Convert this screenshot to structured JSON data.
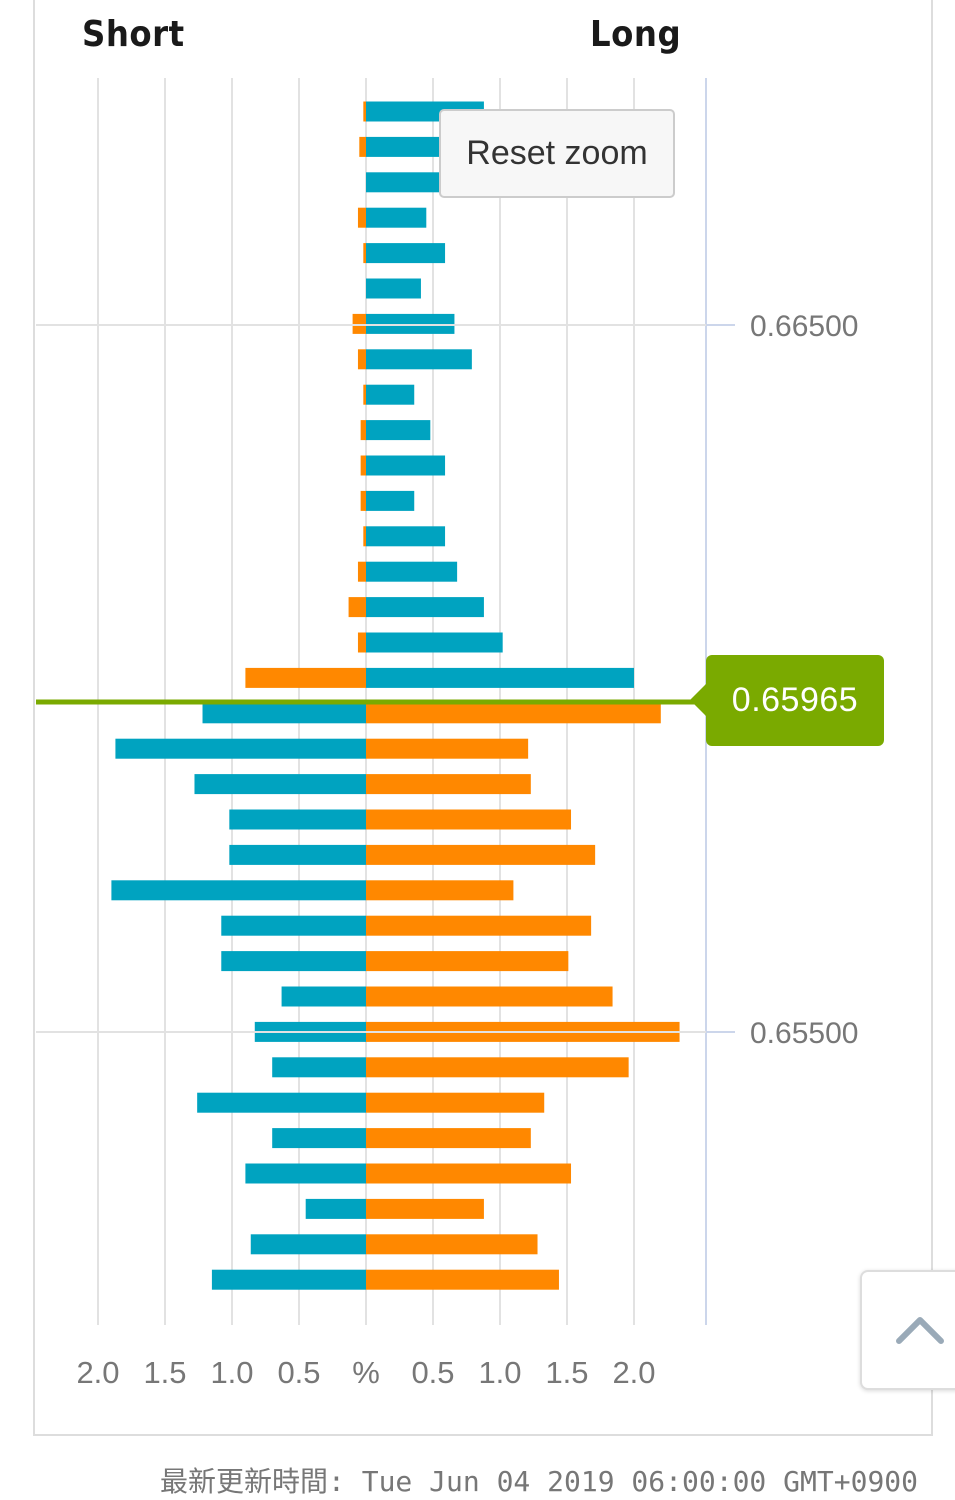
{
  "header": {
    "short_label": "Short",
    "long_label": "Long"
  },
  "reset_zoom_label": "Reset zoom",
  "current_price": "0.65965",
  "footer": {
    "updated": "最新更新時間: Tue Jun 04 2019 06:00:00 GMT+0900"
  },
  "colors": {
    "long": "#00a3c0",
    "short": "#ff8800",
    "price_line": "#7aaa00",
    "grid": "#e2e2e2",
    "axis_text": "#777777"
  },
  "chart_data": {
    "type": "bar",
    "orientation": "horizontal-diverging",
    "x_axis": {
      "unit": "%",
      "ticks_left": [
        "2.0",
        "1.5",
        "1.0",
        "0.5"
      ],
      "center_label": "%",
      "ticks_right": [
        "0.5",
        "1.0",
        "1.5",
        "2.0"
      ],
      "range": [
        -2.5,
        2.5
      ]
    },
    "y_axis": {
      "ticks": [
        "0.66500",
        "0.65500"
      ],
      "tick_values": [
        0.665,
        0.655
      ],
      "current_price": 0.65965
    },
    "series": [
      {
        "name": "Short",
        "values": [
          0.02,
          0.05,
          0.0,
          0.06,
          0.02,
          0.0,
          0.1,
          0.06,
          0.02,
          0.04,
          0.04,
          0.04,
          0.02,
          0.06,
          0.13,
          0.06,
          0.9,
          1.22,
          1.87,
          1.28,
          1.02,
          1.02,
          1.9,
          1.08,
          1.08,
          0.63,
          0.83,
          0.7,
          1.26,
          0.7,
          0.9,
          0.45,
          0.86,
          1.15
        ]
      },
      {
        "name": "Long",
        "values": [
          0.88,
          0.55,
          0.55,
          0.45,
          0.59,
          0.41,
          0.66,
          0.79,
          0.36,
          0.48,
          0.59,
          0.36,
          0.59,
          0.68,
          0.88,
          1.02,
          2.0,
          2.2,
          1.21,
          1.23,
          1.53,
          1.71,
          1.1,
          1.68,
          1.51,
          1.84,
          2.34,
          1.96,
          1.33,
          1.23,
          1.53,
          0.88,
          1.28,
          1.44
        ]
      }
    ],
    "top_row_count_above_price": 17
  }
}
